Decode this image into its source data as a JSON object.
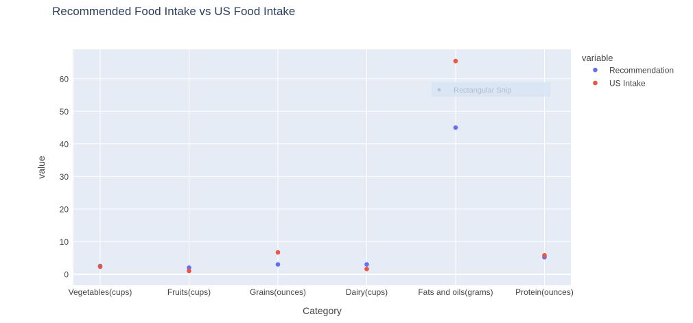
{
  "chart_data": {
    "type": "scatter",
    "title": "Recommended Food Intake vs US Food Intake",
    "xlabel": "Category",
    "ylabel": "value",
    "categories": [
      "Vegetables(cups)",
      "Fruits(cups)",
      "Grains(ounces)",
      "Dairy(cups)",
      "Fats and oils(grams)",
      "Protein(ounces)"
    ],
    "ylim": [
      -3.4,
      69
    ],
    "yticks": [
      0,
      10,
      20,
      30,
      40,
      50,
      60
    ],
    "grid": true,
    "legend": {
      "title": "variable",
      "position": "top-right"
    },
    "series": [
      {
        "name": "Recommendation",
        "color": "#636efa",
        "values": [
          2.5,
          2,
          3,
          3,
          45,
          5.2
        ]
      },
      {
        "name": "US Intake",
        "color": "#ef553b",
        "values": [
          2.3,
          1,
          6.7,
          1.6,
          65.4,
          5.8
        ]
      }
    ]
  },
  "overlay": {
    "label": "Rectangular Snip"
  },
  "colors": {
    "plot_bg": "#e5ecf6",
    "grid": "#ffffff",
    "text": "#444444",
    "title": "#2a3f5f"
  }
}
